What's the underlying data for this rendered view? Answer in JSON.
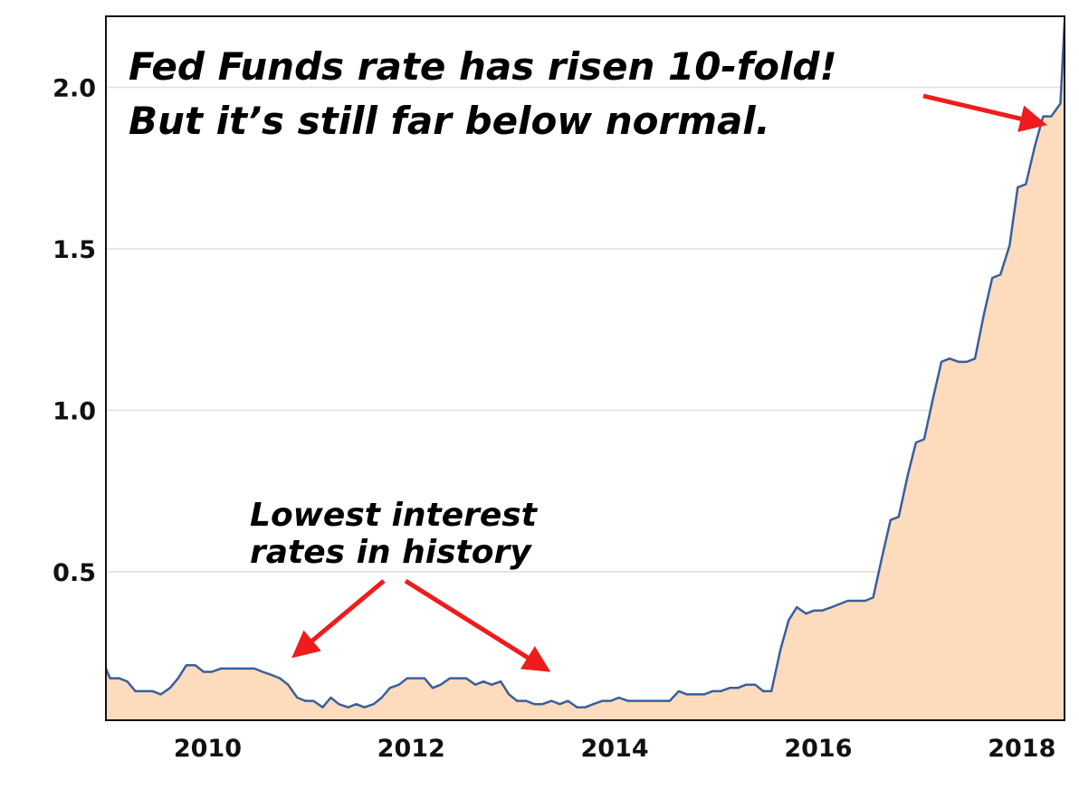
{
  "chart_data": {
    "type": "area",
    "title": "",
    "xlabel": "",
    "ylabel": "",
    "xlim": [
      2009.0,
      2018.42
    ],
    "ylim": [
      0.04,
      2.22
    ],
    "grid": "horizontal",
    "x_ticks": [
      {
        "value": 2010,
        "label": "2010"
      },
      {
        "value": 2012,
        "label": "2012"
      },
      {
        "value": 2014,
        "label": "2014"
      },
      {
        "value": 2016,
        "label": "2016"
      },
      {
        "value": 2018,
        "label": "2018"
      }
    ],
    "y_ticks": [
      {
        "value": 0.5,
        "label": "0.5"
      },
      {
        "value": 1.0,
        "label": "1.0"
      },
      {
        "value": 1.5,
        "label": "1.5"
      },
      {
        "value": 2.0,
        "label": "2.0"
      }
    ],
    "series": [
      {
        "name": "",
        "color": "#3a5f9a",
        "fill": "#fcdcbd",
        "points": [
          [
            2009.0,
            0.2
          ],
          [
            2009.04,
            0.17
          ],
          [
            2009.13,
            0.17
          ],
          [
            2009.21,
            0.16
          ],
          [
            2009.29,
            0.13
          ],
          [
            2009.38,
            0.13
          ],
          [
            2009.46,
            0.13
          ],
          [
            2009.54,
            0.12
          ],
          [
            2009.63,
            0.14
          ],
          [
            2009.71,
            0.17
          ],
          [
            2009.79,
            0.21
          ],
          [
            2009.88,
            0.21
          ],
          [
            2009.96,
            0.19
          ],
          [
            2010.04,
            0.19
          ],
          [
            2010.13,
            0.2
          ],
          [
            2010.21,
            0.2
          ],
          [
            2010.29,
            0.2
          ],
          [
            2010.38,
            0.2
          ],
          [
            2010.46,
            0.2
          ],
          [
            2010.54,
            0.19
          ],
          [
            2010.63,
            0.18
          ],
          [
            2010.71,
            0.17
          ],
          [
            2010.79,
            0.15
          ],
          [
            2010.88,
            0.11
          ],
          [
            2010.96,
            0.1
          ],
          [
            2011.04,
            0.1
          ],
          [
            2011.13,
            0.08
          ],
          [
            2011.21,
            0.11
          ],
          [
            2011.29,
            0.09
          ],
          [
            2011.38,
            0.08
          ],
          [
            2011.46,
            0.09
          ],
          [
            2011.54,
            0.08
          ],
          [
            2011.63,
            0.09
          ],
          [
            2011.71,
            0.11
          ],
          [
            2011.79,
            0.14
          ],
          [
            2011.88,
            0.15
          ],
          [
            2011.96,
            0.17
          ],
          [
            2012.04,
            0.17
          ],
          [
            2012.13,
            0.17
          ],
          [
            2012.21,
            0.14
          ],
          [
            2012.29,
            0.15
          ],
          [
            2012.38,
            0.17
          ],
          [
            2012.46,
            0.17
          ],
          [
            2012.54,
            0.17
          ],
          [
            2012.63,
            0.15
          ],
          [
            2012.71,
            0.16
          ],
          [
            2012.79,
            0.15
          ],
          [
            2012.88,
            0.16
          ],
          [
            2012.96,
            0.12
          ],
          [
            2013.04,
            0.1
          ],
          [
            2013.13,
            0.1
          ],
          [
            2013.21,
            0.09
          ],
          [
            2013.29,
            0.09
          ],
          [
            2013.38,
            0.1
          ],
          [
            2013.46,
            0.09
          ],
          [
            2013.54,
            0.1
          ],
          [
            2013.63,
            0.08
          ],
          [
            2013.71,
            0.08
          ],
          [
            2013.79,
            0.09
          ],
          [
            2013.88,
            0.1
          ],
          [
            2013.96,
            0.1
          ],
          [
            2014.04,
            0.11
          ],
          [
            2014.13,
            0.1
          ],
          [
            2014.21,
            0.1
          ],
          [
            2014.29,
            0.1
          ],
          [
            2014.38,
            0.1
          ],
          [
            2014.46,
            0.1
          ],
          [
            2014.54,
            0.1
          ],
          [
            2014.63,
            0.13
          ],
          [
            2014.71,
            0.12
          ],
          [
            2014.79,
            0.12
          ],
          [
            2014.88,
            0.12
          ],
          [
            2014.96,
            0.13
          ],
          [
            2015.04,
            0.13
          ],
          [
            2015.13,
            0.14
          ],
          [
            2015.21,
            0.14
          ],
          [
            2015.29,
            0.15
          ],
          [
            2015.38,
            0.15
          ],
          [
            2015.46,
            0.13
          ],
          [
            2015.54,
            0.13
          ],
          [
            2015.63,
            0.26
          ],
          [
            2015.71,
            0.35
          ],
          [
            2015.79,
            0.39
          ],
          [
            2015.88,
            0.37
          ],
          [
            2015.96,
            0.38
          ],
          [
            2016.04,
            0.38
          ],
          [
            2016.13,
            0.39
          ],
          [
            2016.21,
            0.4
          ],
          [
            2016.29,
            0.41
          ],
          [
            2016.38,
            0.41
          ],
          [
            2016.46,
            0.41
          ],
          [
            2016.54,
            0.42
          ],
          [
            2016.63,
            0.55
          ],
          [
            2016.71,
            0.66
          ],
          [
            2016.79,
            0.67
          ],
          [
            2016.88,
            0.8
          ],
          [
            2016.96,
            0.9
          ],
          [
            2017.04,
            0.91
          ],
          [
            2017.13,
            1.04
          ],
          [
            2017.21,
            1.15
          ],
          [
            2017.29,
            1.16
          ],
          [
            2017.38,
            1.15
          ],
          [
            2017.46,
            1.15
          ],
          [
            2017.54,
            1.16
          ],
          [
            2017.63,
            1.3
          ],
          [
            2017.71,
            1.41
          ],
          [
            2017.79,
            1.42
          ],
          [
            2017.88,
            1.51
          ],
          [
            2017.96,
            1.69
          ],
          [
            2018.04,
            1.7
          ],
          [
            2018.13,
            1.82
          ],
          [
            2018.21,
            1.91
          ],
          [
            2018.29,
            1.91
          ],
          [
            2018.38,
            1.95
          ],
          [
            2018.42,
            2.2
          ]
        ]
      }
    ],
    "annotations": [
      {
        "id": "main",
        "lines": [
          "Fed Funds rate has risen 10-fold!",
          "But it’s still far below normal."
        ]
      },
      {
        "id": "low",
        "lines": [
          "Lowest interest",
          "rates in history"
        ]
      }
    ],
    "arrow_color": "#ee1c1c",
    "grid_color": "#dedede",
    "frame_color": "#111111"
  }
}
